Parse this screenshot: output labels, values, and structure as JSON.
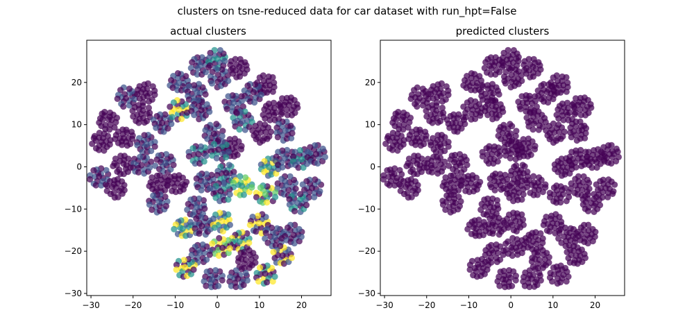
{
  "figure": {
    "suptitle": "clusters on tsne-reduced data for car dataset with run_hpt=False"
  },
  "colors": {
    "purple": "#440154",
    "blue": "#3b528b",
    "teal": "#21918c",
    "green": "#5ec962",
    "yellow": "#fde725",
    "alpha_note": "points drawn semi-transparent (alpha≈0.7)"
  },
  "chart_data": [
    {
      "type": "scatter",
      "title": "actual clusters",
      "xlabel": "",
      "ylabel": "",
      "xlim": [
        -31,
        27
      ],
      "ylim": [
        -30.5,
        30
      ],
      "xticks": [
        -30,
        -20,
        -10,
        0,
        10,
        20
      ],
      "yticks": [
        -30,
        -20,
        -10,
        0,
        10,
        20
      ],
      "grid": false,
      "colored_by_class": true,
      "cluster_centers": [
        {
          "x": -27.5,
          "y": 6,
          "colors": [
            "purple"
          ]
        },
        {
          "x": -26,
          "y": 11,
          "colors": [
            "purple"
          ]
        },
        {
          "x": -21.5,
          "y": 16.5,
          "colors": [
            "purple",
            "blue"
          ]
        },
        {
          "x": -22,
          "y": 7,
          "colors": [
            "purple"
          ]
        },
        {
          "x": -17,
          "y": 17.5,
          "colors": [
            "purple"
          ]
        },
        {
          "x": -18,
          "y": 12.5,
          "colors": [
            "purple"
          ]
        },
        {
          "x": -13,
          "y": 10.5,
          "colors": [
            "purple",
            "blue"
          ]
        },
        {
          "x": -9,
          "y": 20,
          "colors": [
            "purple",
            "blue"
          ]
        },
        {
          "x": -5,
          "y": 17.5,
          "colors": [
            "blue",
            "purple"
          ]
        },
        {
          "x": -4,
          "y": 24,
          "colors": [
            "purple",
            "blue"
          ]
        },
        {
          "x": 0,
          "y": 25.5,
          "colors": [
            "blue",
            "teal",
            "purple"
          ]
        },
        {
          "x": 0.5,
          "y": 21,
          "colors": [
            "blue",
            "purple"
          ]
        },
        {
          "x": 5,
          "y": 23.5,
          "colors": [
            "purple"
          ]
        },
        {
          "x": 11.5,
          "y": 19.5,
          "colors": [
            "purple"
          ]
        },
        {
          "x": 8.5,
          "y": 17.5,
          "colors": [
            "purple",
            "blue"
          ]
        },
        {
          "x": 4,
          "y": 15,
          "colors": [
            "purple",
            "blue"
          ]
        },
        {
          "x": 17,
          "y": 14.5,
          "colors": [
            "purple"
          ]
        },
        {
          "x": 13,
          "y": 13,
          "colors": [
            "purple"
          ]
        },
        {
          "x": -9,
          "y": 13.5,
          "colors": [
            "yellow",
            "teal",
            "purple"
          ]
        },
        {
          "x": -4,
          "y": 13.5,
          "colors": [
            "blue",
            "purple"
          ]
        },
        {
          "x": 6,
          "y": 11,
          "colors": [
            "purple",
            "teal",
            "blue"
          ]
        },
        {
          "x": 16,
          "y": 8.5,
          "colors": [
            "purple",
            "blue"
          ]
        },
        {
          "x": 10.5,
          "y": 8,
          "colors": [
            "purple"
          ]
        },
        {
          "x": -17,
          "y": 5.5,
          "colors": [
            "purple",
            "blue"
          ]
        },
        {
          "x": -1,
          "y": 8,
          "colors": [
            "purple",
            "blue"
          ]
        },
        {
          "x": -4.5,
          "y": 3,
          "colors": [
            "blue",
            "purple",
            "teal"
          ]
        },
        {
          "x": 3.5,
          "y": 4.5,
          "colors": [
            "purple"
          ]
        },
        {
          "x": 0.5,
          "y": 4,
          "colors": [
            "purple",
            "teal",
            "blue"
          ]
        },
        {
          "x": -28,
          "y": -2.5,
          "colors": [
            "purple",
            "blue"
          ]
        },
        {
          "x": -22.5,
          "y": 0.5,
          "colors": [
            "purple"
          ]
        },
        {
          "x": -18,
          "y": 0.5,
          "colors": [
            "purple",
            "blue"
          ]
        },
        {
          "x": -12.5,
          "y": 1,
          "colors": [
            "purple",
            "blue"
          ]
        },
        {
          "x": 12.5,
          "y": 0,
          "colors": [
            "yellow",
            "blue",
            "teal"
          ]
        },
        {
          "x": 16,
          "y": 2,
          "colors": [
            "purple",
            "blue"
          ]
        },
        {
          "x": 20,
          "y": 2,
          "colors": [
            "purple",
            "teal",
            "blue"
          ]
        },
        {
          "x": 23.5,
          "y": 3,
          "colors": [
            "blue",
            "purple"
          ]
        },
        {
          "x": 2,
          "y": -1.5,
          "colors": [
            "purple",
            "teal",
            "blue"
          ]
        },
        {
          "x": -3,
          "y": -3.5,
          "colors": [
            "purple",
            "blue"
          ]
        },
        {
          "x": -24,
          "y": -5,
          "colors": [
            "purple"
          ]
        },
        {
          "x": -14,
          "y": -4,
          "colors": [
            "purple"
          ]
        },
        {
          "x": -9.5,
          "y": -4,
          "colors": [
            "purple"
          ]
        },
        {
          "x": 6,
          "y": -4.5,
          "colors": [
            "yellow",
            "green",
            "teal"
          ]
        },
        {
          "x": 16.5,
          "y": -4.5,
          "colors": [
            "blue",
            "purple"
          ]
        },
        {
          "x": 22.5,
          "y": -5,
          "colors": [
            "blue",
            "purple"
          ]
        },
        {
          "x": 1,
          "y": -6,
          "colors": [
            "teal",
            "blue",
            "purple"
          ]
        },
        {
          "x": 11.5,
          "y": -6.5,
          "colors": [
            "yellow",
            "purple",
            "teal",
            "green"
          ]
        },
        {
          "x": -14,
          "y": -8.5,
          "colors": [
            "blue",
            "purple"
          ]
        },
        {
          "x": -5,
          "y": -9.5,
          "colors": [
            "purple",
            "blue"
          ]
        },
        {
          "x": 19,
          "y": -8.5,
          "colors": [
            "blue",
            "teal",
            "purple"
          ]
        },
        {
          "x": -8,
          "y": -14.5,
          "colors": [
            "yellow",
            "teal",
            "blue"
          ]
        },
        {
          "x": -3.5,
          "y": -14,
          "colors": [
            "purple",
            "blue"
          ]
        },
        {
          "x": 1,
          "y": -13,
          "colors": [
            "yellow",
            "teal",
            "blue"
          ]
        },
        {
          "x": 10,
          "y": -13.5,
          "colors": [
            "purple",
            "yellow",
            "blue"
          ]
        },
        {
          "x": 13.5,
          "y": -16.5,
          "colors": [
            "purple",
            "blue"
          ]
        },
        {
          "x": 18,
          "y": -16,
          "colors": [
            "purple",
            "blue"
          ]
        },
        {
          "x": 5.5,
          "y": -17.5,
          "colors": [
            "yellow",
            "teal",
            "purple"
          ]
        },
        {
          "x": 1,
          "y": -19,
          "colors": [
            "green",
            "yellow",
            "purple"
          ]
        },
        {
          "x": -4,
          "y": -20.5,
          "colors": [
            "purple",
            "blue"
          ]
        },
        {
          "x": 15.5,
          "y": -21,
          "colors": [
            "yellow",
            "purple",
            "blue"
          ]
        },
        {
          "x": 7,
          "y": -22,
          "colors": [
            "purple"
          ]
        },
        {
          "x": -7.5,
          "y": -24,
          "colors": [
            "yellow",
            "teal",
            "purple"
          ]
        },
        {
          "x": -1,
          "y": -26.5,
          "colors": [
            "purple",
            "blue"
          ]
        },
        {
          "x": 5,
          "y": -26.5,
          "colors": [
            "purple",
            "blue"
          ]
        },
        {
          "x": 11.5,
          "y": -25.5,
          "colors": [
            "purple",
            "yellow",
            "teal"
          ]
        }
      ]
    },
    {
      "type": "scatter",
      "title": "predicted clusters",
      "xlabel": "",
      "ylabel": "",
      "xlim": [
        -31,
        27
      ],
      "ylim": [
        -30.5,
        30
      ],
      "xticks": [
        -30,
        -20,
        -10,
        0,
        10,
        20
      ],
      "yticks": [
        -30,
        -20,
        -10,
        0,
        10,
        20
      ],
      "grid": false,
      "colored_by_class": false,
      "single_color": "purple",
      "note": "same point layout as actual clusters; every point in one predicted cluster"
    }
  ]
}
